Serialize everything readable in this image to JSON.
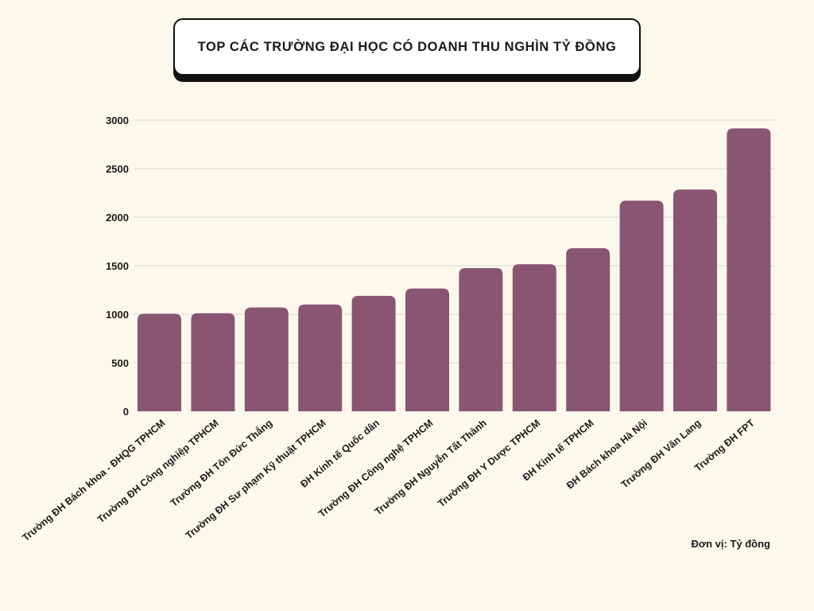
{
  "title": "TOP CÁC TRƯỜNG ĐẠI HỌC CÓ DOANH THU NGHÌN TỶ ĐỒNG",
  "unit_note": "Đơn vị: Tỷ đồng",
  "colors": {
    "bar": "#8a5572",
    "background": "#fcf8ec",
    "grid": "#d9d6d0",
    "text": "#1a1a1a"
  },
  "chart_data": {
    "type": "bar",
    "title": "TOP CÁC TRƯỜNG ĐẠI HỌC CÓ DOANH THU NGHÌN TỶ ĐỒNG",
    "categories": [
      "Trường ĐH Bách khoa - ĐHQG TPHCM",
      "Trường ĐH Công nghiệp TPHCM",
      "Trường ĐH Tôn Đức Thắng",
      "Trường ĐH Sư phạm Kỹ thuật TPHCM",
      "ĐH Kinh tế Quốc dân",
      "Trường ĐH Công nghệ TPHCM",
      "Trường ĐH Nguyễn Tất Thành",
      "Trường ĐH Y Dược TPHCM",
      "ĐH Kinh tế TPHCM",
      "ĐH Bách khoa Hà Nội",
      "Trường ĐH Văn Lang",
      "Trường ĐH FPT"
    ],
    "values": [
      1005,
      1010,
      1070,
      1100,
      1190,
      1265,
      1475,
      1515,
      1680,
      2170,
      2285,
      2915
    ],
    "yticks": [
      0,
      500,
      1000,
      1500,
      2000,
      2500,
      3000
    ],
    "ylim": [
      0,
      3000
    ],
    "grid": true,
    "xlabel": "",
    "ylabel": ""
  }
}
